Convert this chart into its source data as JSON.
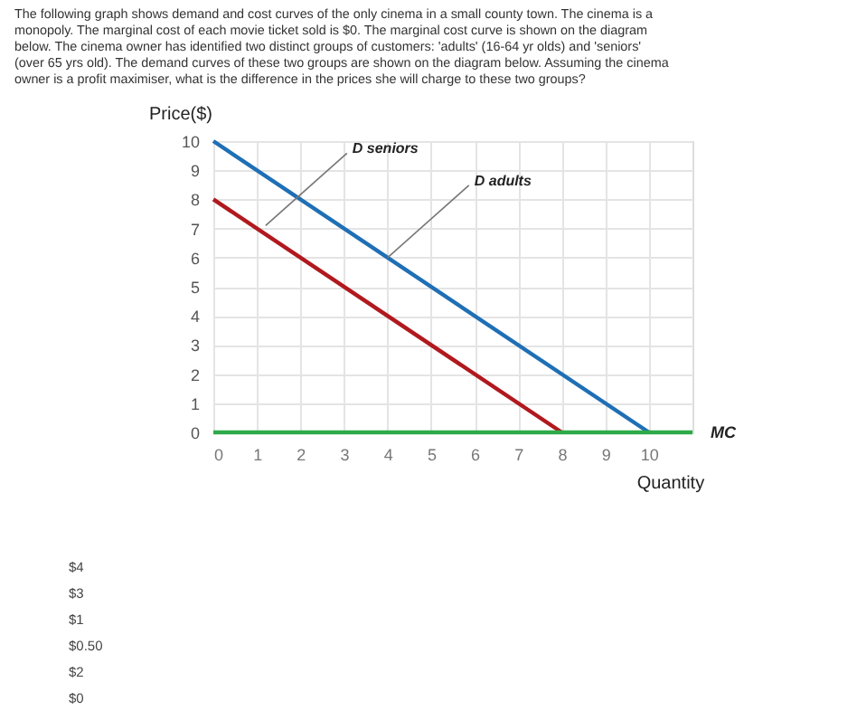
{
  "chart_data": {
    "type": "line",
    "title": "The following graph shows demand and cost curves of the only cinema in a small county town. The cinema is a monopoly. The marginal cost of each movie ticket sold is $0. The marginal cost curve is shown on the diagram below. The cinema owner has identified two distinct groups of customers: 'adults' (16-64 yr olds) and 'seniors' (over 65 yrs old). The demand curves of these two groups are shown on the diagram below. Assuming the cinema owner is a profit maximiser, what is the difference in the prices she will charge to these two groups?",
    "xlabel": "Quantity",
    "ylabel": "Price($)",
    "xlim": [
      0,
      11
    ],
    "ylim": [
      0,
      10
    ],
    "xticks": [
      0,
      1,
      2,
      3,
      4,
      5,
      6,
      7,
      8,
      9,
      10
    ],
    "yticks": [
      0,
      1,
      2,
      3,
      4,
      5,
      6,
      7,
      8,
      9,
      10
    ],
    "grid": true,
    "marker": "none",
    "line_style": "solid",
    "series": [
      {
        "color": "#1f6fb5",
        "x": [
          0,
          10
        ],
        "values": [
          10,
          0
        ]
      },
      {
        "color": "#b0191e",
        "x": [
          0,
          8
        ],
        "values": [
          8,
          0
        ]
      },
      {
        "name": "MC",
        "color": "#2eaa4a",
        "x": [
          0,
          11
        ],
        "values": [
          0,
          0
        ]
      }
    ],
    "annotations": [
      {
        "text": "D seniors",
        "x": 1.2,
        "y": 7.1
      },
      {
        "text": "D adults",
        "x": 4,
        "y": 6
      },
      "$4",
      "$3",
      "$1",
      "$0.50",
      "$2",
      "$0"
    ]
  }
}
